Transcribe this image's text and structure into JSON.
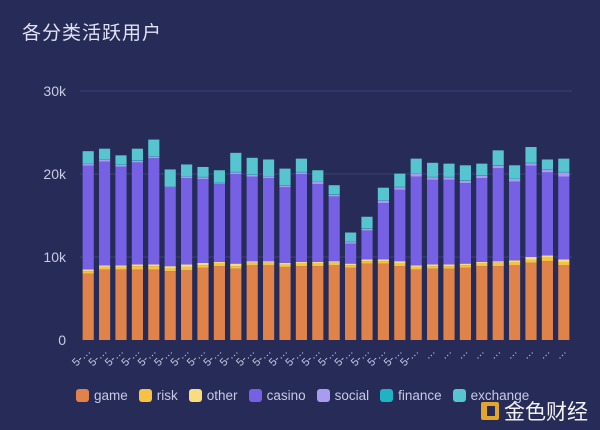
{
  "title": "各分类活跃用户",
  "watermark": "金色财经",
  "chart_data": {
    "type": "bar",
    "stacked": true,
    "title": "各分类活跃用户",
    "ylim": [
      0,
      30000
    ],
    "yticks": [
      "0",
      "10k",
      "20k",
      "30k"
    ],
    "grid": true,
    "legend_position": "bottom",
    "categories": [
      "5-…",
      "5-…",
      "5-…",
      "5-…",
      "5-…",
      "5-…",
      "5-…",
      "5-…",
      "5-…",
      "5-…",
      "5-…",
      "5-…",
      "5-…",
      "5-…",
      "5-…",
      "5-…",
      "5-…",
      "5-…",
      "5-…",
      "5-…",
      "5-…",
      "…",
      "…",
      "…",
      "…",
      "…",
      "…",
      "…",
      "…",
      "…"
    ],
    "series": [
      {
        "name": "game",
        "color": "#e0834a",
        "values": [
          8000,
          8500,
          8500,
          8500,
          8500,
          8300,
          8400,
          8700,
          8900,
          8600,
          9000,
          9000,
          8800,
          8900,
          8900,
          9000,
          8700,
          9200,
          9200,
          8900,
          8500,
          8600,
          8600,
          8700,
          8900,
          8900,
          9000,
          9300,
          9500,
          9000
        ]
      },
      {
        "name": "risk",
        "color": "#f5c242",
        "values": [
          300,
          300,
          300,
          400,
          400,
          300,
          400,
          300,
          300,
          300,
          300,
          300,
          300,
          300,
          300,
          300,
          300,
          300,
          300,
          300,
          300,
          300,
          300,
          300,
          300,
          400,
          400,
          400,
          400,
          400
        ]
      },
      {
        "name": "other",
        "color": "#f9dc7e",
        "values": [
          200,
          200,
          200,
          200,
          200,
          300,
          300,
          300,
          200,
          300,
          200,
          200,
          200,
          200,
          200,
          200,
          200,
          200,
          200,
          300,
          200,
          200,
          200,
          200,
          200,
          200,
          200,
          300,
          300,
          300
        ]
      },
      {
        "name": "casino",
        "color": "#7661e4",
        "values": [
          12500,
          12500,
          11900,
          12300,
          12800,
          9500,
          10400,
          10100,
          9400,
          10800,
          10200,
          10000,
          9100,
          10600,
          9400,
          7800,
          2400,
          3500,
          6800,
          8600,
          10700,
          10200,
          10200,
          9700,
          10100,
          11200,
          9500,
          11000,
          10000,
          10000
        ]
      },
      {
        "name": "social",
        "color": "#a99cf0",
        "values": [
          200,
          200,
          200,
          200,
          200,
          100,
          200,
          200,
          100,
          200,
          200,
          200,
          200,
          200,
          300,
          200,
          200,
          200,
          300,
          300,
          300,
          300,
          300,
          300,
          300,
          300,
          300,
          300,
          300,
          500
        ]
      },
      {
        "name": "finance",
        "color": "#1fb3c4",
        "values": [
          50,
          50,
          50,
          50,
          50,
          50,
          50,
          50,
          50,
          50,
          50,
          50,
          50,
          50,
          50,
          50,
          50,
          50,
          50,
          50,
          50,
          50,
          50,
          50,
          50,
          50,
          50,
          50,
          50,
          50
        ]
      },
      {
        "name": "exchange",
        "color": "#57c5cf",
        "values": [
          1500,
          1300,
          1100,
          1400,
          2000,
          2000,
          1400,
          1200,
          1500,
          2300,
          2000,
          2000,
          2000,
          1600,
          1300,
          1100,
          1100,
          1400,
          1500,
          1600,
          1800,
          1700,
          1600,
          1800,
          1400,
          1800,
          1600,
          1900,
          1200,
          1600
        ]
      }
    ]
  }
}
